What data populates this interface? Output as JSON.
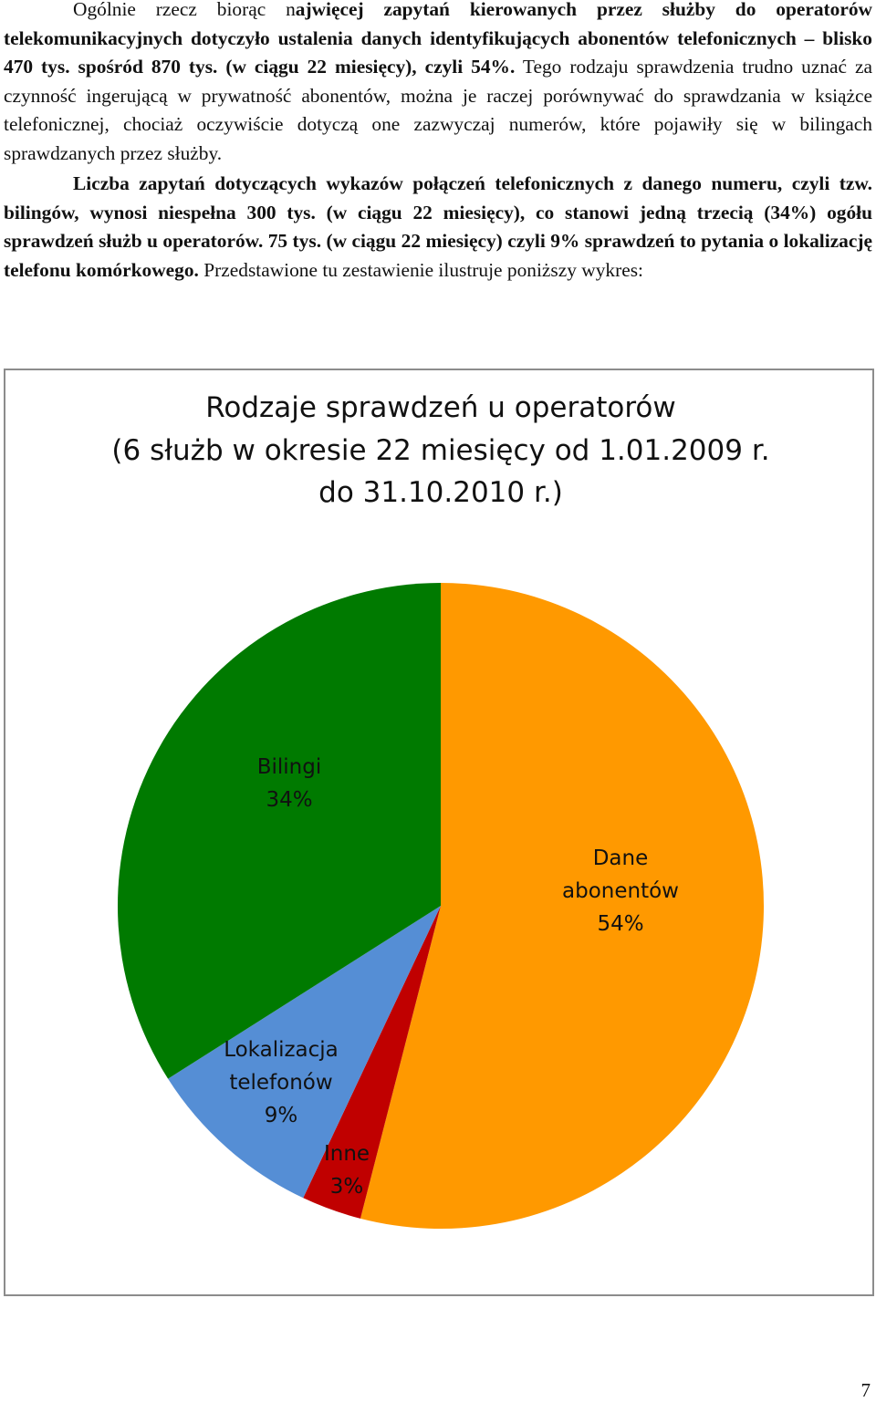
{
  "paragraphs": [
    {
      "segments": [
        {
          "text": "Ogólnie rzecz biorąc n",
          "bold": false
        },
        {
          "text": "ajwięcej zapytań kierowanych przez służby do operatorów telekomunikacyjnych dotyczyło ustalenia danych identyfikujących abonentów telefonicznych – blisko 470 tys. spośród 870 tys. (w ciągu 22 miesięcy), czyli 54%.",
          "bold": true
        },
        {
          "text": " Tego rodzaju sprawdzenia trudno uznać za czynność ingerującą w prywatność abonentów, można je raczej porównywać do sprawdzania w książce telefonicznej, chociaż oczywiście dotyczą one zazwyczaj numerów, które pojawiły się w bilingach sprawdzanych przez służby.",
          "bold": false
        }
      ]
    },
    {
      "segments": [
        {
          "text": "Liczba zapytań dotyczących wykazów połączeń telefonicznych z danego numeru, czyli tzw. bilingów, wynosi niespełna 300 tys. (w ciągu 22 miesięcy), co stanowi jedną trzecią (34%) ogółu sprawdzeń służb u operatorów. 75 tys. (w ciągu 22 miesięcy) czyli 9% sprawdzeń to pytania o lokalizację telefonu komórkowego.",
          "bold": true
        },
        {
          "text": " Przedstawione tu zestawienie ilustruje poniższy wykres:",
          "bold": false
        }
      ]
    }
  ],
  "chart_data": {
    "type": "pie",
    "title_lines": [
      "Rodzaje sprawdzeń u operatorów",
      "(6 służb w okresie 22 miesięcy od 1.01.2009 r.",
      "do 31.10.2010 r.)"
    ],
    "slices": [
      {
        "label_lines": [
          "Dane",
          "abonentów",
          "54%"
        ],
        "value": 54,
        "color": "#ff9900"
      },
      {
        "label_lines": [
          "Inne",
          "3%"
        ],
        "value": 3,
        "color": "#c00000"
      },
      {
        "label_lines": [
          "Lokalizacja",
          "telefonów",
          "9%"
        ],
        "value": 9,
        "color": "#558ed5"
      },
      {
        "label_lines": [
          "Bilingi",
          "34%"
        ],
        "value": 34,
        "color": "#007a00"
      }
    ],
    "start": "12 o'clock",
    "direction": "clockwise",
    "legend": "none"
  },
  "page_number": "7"
}
